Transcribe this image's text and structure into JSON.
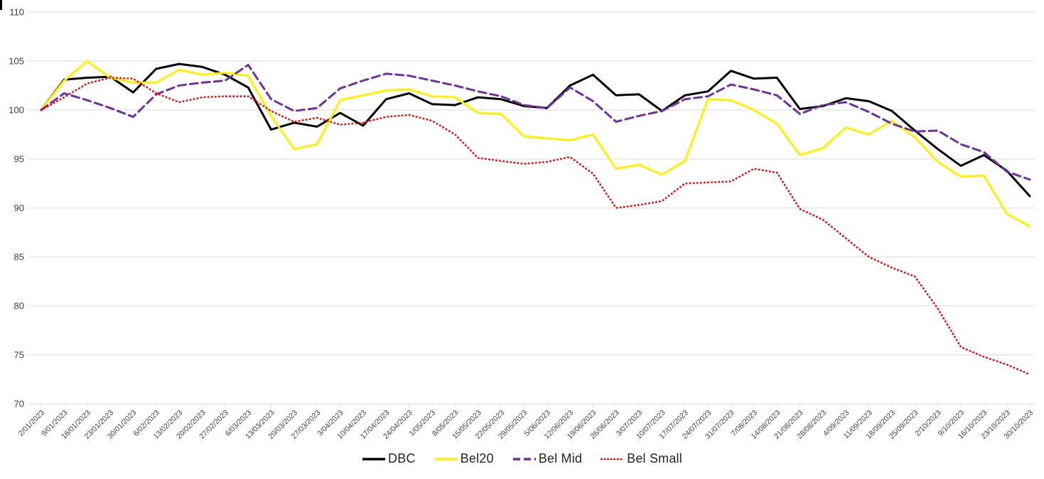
{
  "page": {
    "background_color": "#ffffff",
    "corner_mark_color": "#000000",
    "gridline_color": "#d9d9d9",
    "axis_text_color": "#404040",
    "legend_text_color": "#262626"
  },
  "chart_data": {
    "type": "line",
    "title": "",
    "xlabel": "",
    "ylabel": "",
    "ylim": [
      70,
      110
    ],
    "ytick_step": 5,
    "yticks": [
      70,
      75,
      80,
      85,
      90,
      95,
      100,
      105,
      110
    ],
    "grid": "horizontal",
    "legend_position": "bottom-center",
    "categories": [
      "2/01/2023",
      "9/01/2023",
      "16/01/2023",
      "23/01/2023",
      "30/01/2023",
      "6/02/2023",
      "13/02/2023",
      "20/02/2023",
      "27/02/2023",
      "6/03/2023",
      "13/03/2023",
      "20/03/2023",
      "27/03/2023",
      "3/04/2023",
      "10/04/2023",
      "17/04/2023",
      "24/04/2023",
      "1/05/2023",
      "8/05/2023",
      "15/05/2023",
      "22/05/2023",
      "29/05/2023",
      "5/06/2023",
      "12/06/2023",
      "19/06/2023",
      "26/06/2023",
      "3/07/2023",
      "10/07/2023",
      "17/07/2023",
      "24/07/2023",
      "31/07/2023",
      "7/08/2023",
      "14/08/2023",
      "21/08/2023",
      "28/08/2023",
      "4/09/2023",
      "11/09/2023",
      "18/09/2023",
      "25/09/2023",
      "2/10/2023",
      "9/10/2023",
      "16/10/2023",
      "23/10/2023",
      "30/10/2023"
    ],
    "series": [
      {
        "name": "DBC",
        "color": "#000000",
        "line_style": "solid",
        "values": [
          100,
          103.1,
          103.3,
          103.4,
          101.8,
          104.2,
          104.7,
          104.4,
          103.6,
          102.3,
          98.0,
          98.7,
          98.3,
          99.7,
          98.4,
          101.1,
          101.7,
          100.6,
          100.5,
          101.3,
          101.1,
          100.4,
          100.2,
          102.5,
          103.6,
          101.5,
          101.6,
          99.9,
          101.5,
          101.9,
          104.0,
          103.2,
          103.3,
          100.1,
          100.4,
          101.2,
          100.9,
          99.9,
          97.9,
          96.0,
          94.3,
          95.4,
          93.8,
          91.2
        ]
      },
      {
        "name": "Bel20",
        "color": "#fff100",
        "line_style": "solid",
        "values": [
          100,
          103.0,
          105.0,
          103.3,
          102.8,
          102.8,
          104.1,
          103.6,
          103.8,
          103.5,
          99.4,
          96.0,
          96.5,
          101.0,
          101.5,
          102.0,
          102.1,
          101.4,
          101.3,
          99.7,
          99.6,
          97.3,
          97.1,
          96.9,
          97.5,
          94.0,
          94.4,
          93.4,
          94.8,
          101.1,
          101.0,
          100.0,
          98.6,
          95.4,
          96.1,
          98.2,
          97.5,
          98.9,
          97.2,
          94.7,
          93.2,
          93.3,
          89.4,
          88.1
        ]
      },
      {
        "name": "Bel Mid",
        "color": "#7030a0",
        "line_style": "dashed",
        "values": [
          100,
          101.7,
          101.0,
          100.2,
          99.3,
          101.6,
          102.5,
          102.8,
          103.0,
          104.6,
          101.1,
          99.9,
          100.2,
          102.2,
          103.0,
          103.7,
          103.5,
          103.0,
          102.5,
          101.9,
          101.4,
          100.5,
          100.2,
          102.3,
          100.9,
          98.8,
          99.4,
          99.9,
          101.1,
          101.4,
          102.6,
          102.1,
          101.5,
          99.6,
          100.5,
          100.8,
          99.8,
          98.6,
          97.8,
          97.9,
          96.5,
          95.7,
          93.7,
          92.9
        ]
      },
      {
        "name": "Bel Small",
        "color": "#ff0000",
        "line_style": "dotted",
        "values": [
          100,
          101.3,
          102.7,
          103.3,
          103.2,
          101.7,
          100.8,
          101.3,
          101.4,
          101.4,
          99.9,
          98.8,
          99.2,
          98.5,
          98.7,
          99.3,
          99.5,
          98.9,
          97.5,
          95.1,
          94.8,
          94.5,
          94.7,
          95.2,
          93.5,
          90.0,
          90.3,
          90.7,
          92.5,
          92.6,
          92.7,
          94.0,
          93.6,
          89.9,
          88.8,
          86.9,
          85.0,
          83.9,
          83.0,
          79.7,
          75.8,
          74.8,
          74.0,
          73.0
        ]
      }
    ]
  }
}
